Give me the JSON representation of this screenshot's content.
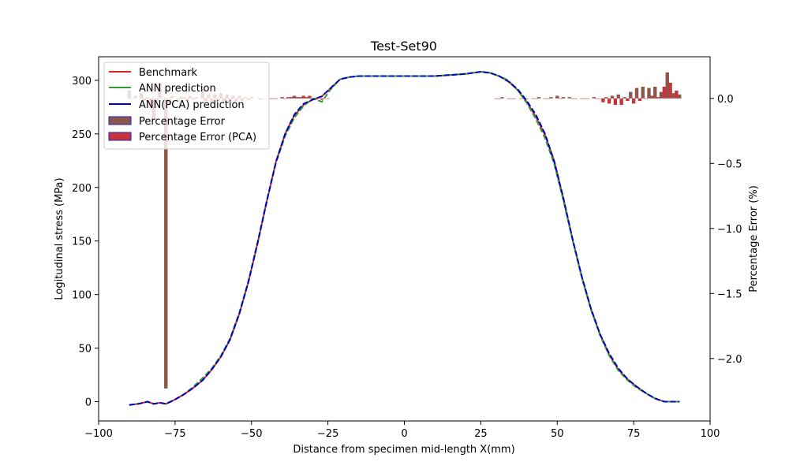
{
  "chart_data": {
    "type": "line",
    "title": "Test-Set90",
    "xlabel": "Distance from specimen mid-length X(mm)",
    "ylabel": "Logitudinal stress (MPa)",
    "y2label": "Percentage Error (%)",
    "xlim": [
      -100,
      100
    ],
    "ylim": [
      -18,
      322
    ],
    "y2lim": [
      -2.48,
      0.32
    ],
    "xticks": [
      -100,
      -75,
      -50,
      -25,
      0,
      25,
      50,
      75,
      100
    ],
    "yticks": [
      0,
      50,
      100,
      150,
      200,
      250,
      300
    ],
    "y2ticks": [
      -2.0,
      -1.5,
      -1.0,
      -0.5,
      0.0
    ],
    "y2ticklabels": [
      "−2.0",
      "−1.5",
      "−1.0",
      "−0.5",
      "0.0"
    ],
    "xticklabels": [
      "−100",
      "−75",
      "−50",
      "−25",
      "0",
      "25",
      "50",
      "75",
      "100"
    ],
    "grid": false,
    "legend_position": "top-left",
    "series": [
      {
        "name": "Benchmark",
        "color": "#d62728",
        "style": "solid",
        "x": [
          -90,
          -87,
          -84,
          -82,
          -80,
          -78,
          -75,
          -72,
          -69,
          -66,
          -63,
          -60,
          -57,
          -54,
          -51,
          -48,
          -45,
          -42,
          -39,
          -36,
          -33,
          -30,
          -27,
          -24,
          -21,
          -18,
          -15,
          -10,
          -5,
          0,
          5,
          10,
          15,
          20,
          25,
          28,
          31,
          34,
          37,
          40,
          43,
          46,
          49,
          52,
          55,
          58,
          61,
          64,
          67,
          70,
          73,
          76,
          79,
          82,
          85,
          88,
          90
        ],
        "values": [
          -3,
          -2,
          0,
          -2,
          -1,
          -2,
          2,
          7,
          13,
          20,
          30,
          42,
          58,
          82,
          112,
          148,
          187,
          224,
          250,
          267,
          277,
          282,
          285,
          293,
          301,
          303,
          304,
          304,
          304,
          304,
          304,
          304,
          305,
          306,
          308,
          307,
          304,
          299,
          291,
          280,
          266,
          249,
          225,
          190,
          152,
          117,
          87,
          63,
          44,
          30,
          21,
          14,
          8,
          3,
          0,
          0,
          0
        ]
      },
      {
        "name": "ANN prediction",
        "color": "#2ca02c",
        "style": "dashed",
        "x": [
          -90,
          -87,
          -84,
          -82,
          -80,
          -78,
          -75,
          -72,
          -69,
          -66,
          -63,
          -60,
          -57,
          -54,
          -51,
          -48,
          -45,
          -42,
          -39,
          -36,
          -33,
          -30,
          -27,
          -24,
          -21,
          -18,
          -15,
          -10,
          -5,
          0,
          5,
          10,
          15,
          20,
          25,
          28,
          31,
          34,
          37,
          40,
          43,
          46,
          49,
          52,
          55,
          58,
          61,
          64,
          67,
          70,
          73,
          76,
          79,
          82,
          85,
          88,
          90
        ],
        "values": [
          -3,
          -2,
          0,
          -2,
          -1,
          -2,
          2,
          7,
          14,
          22,
          31,
          43,
          59,
          83,
          113,
          149,
          188,
          223,
          248,
          265,
          276,
          283,
          280,
          292,
          301,
          303,
          304,
          304,
          304,
          304,
          304,
          304,
          305,
          306,
          308,
          307,
          304,
          300,
          291,
          279,
          264,
          246,
          222,
          188,
          151,
          116,
          86,
          62,
          43,
          29,
          20,
          13,
          8,
          3,
          0,
          0,
          0
        ]
      },
      {
        "name": "ANN(PCA) prediction",
        "color": "#0000cc",
        "style": "dashed",
        "x": [
          -90,
          -87,
          -84,
          -82,
          -80,
          -78,
          -75,
          -72,
          -69,
          -66,
          -63,
          -60,
          -57,
          -54,
          -51,
          -48,
          -45,
          -42,
          -39,
          -36,
          -33,
          -30,
          -27,
          -24,
          -21,
          -18,
          -15,
          -10,
          -5,
          0,
          5,
          10,
          15,
          20,
          25,
          28,
          31,
          34,
          37,
          40,
          43,
          46,
          49,
          52,
          55,
          58,
          61,
          64,
          67,
          70,
          73,
          76,
          79,
          82,
          85,
          88,
          90
        ],
        "values": [
          -3,
          -2,
          0,
          -2,
          -1,
          -2,
          2,
          7,
          13,
          20,
          30,
          42,
          58,
          82,
          112,
          148,
          187,
          224,
          250,
          268,
          278,
          282,
          285,
          293,
          301,
          303,
          304,
          304,
          304,
          304,
          304,
          304,
          305,
          306,
          308,
          307,
          304,
          299,
          292,
          281,
          268,
          250,
          224,
          190,
          152,
          117,
          87,
          63,
          45,
          31,
          21,
          14,
          8,
          3,
          0,
          0,
          0
        ]
      }
    ],
    "bar_series": [
      {
        "name": "Percentage Error",
        "color": "#8c564b",
        "edgecolor": "#1f1fcc",
        "x": [
          -90,
          -88,
          -86,
          -84,
          -82,
          -80,
          -78,
          -76,
          -74,
          -72,
          -70,
          -68,
          -66,
          -64,
          -62,
          -60,
          -58,
          -56,
          -54,
          -52,
          -50,
          -48,
          -46,
          -44,
          -42,
          -40,
          -38,
          -36,
          -34,
          -32,
          30,
          32,
          34,
          36,
          38,
          40,
          42,
          44,
          46,
          48,
          50,
          52,
          54,
          56,
          58,
          60,
          62,
          64,
          66,
          68,
          70,
          72,
          74,
          76,
          78,
          80,
          82,
          84,
          86,
          88,
          90
        ],
        "values": [
          0.06,
          0.02,
          0.04,
          0.01,
          -0.16,
          0.12,
          -2.23,
          0.02,
          -0.01,
          0.01,
          0.02,
          0.01,
          0.07,
          0.03,
          0.03,
          0.04,
          0.03,
          0.02,
          0.02,
          0.01,
          0.01,
          0.0,
          0.0,
          0.0,
          0.0,
          0.01,
          0.01,
          0.02,
          0.01,
          0.01,
          0.0,
          0.01,
          0.0,
          0.0,
          0.0,
          0.0,
          0.0,
          0.01,
          0.0,
          0.01,
          0.02,
          0.01,
          0.01,
          0.0,
          0.0,
          0.0,
          0.01,
          0.0,
          0.01,
          0.02,
          0.03,
          0.01,
          0.05,
          0.08,
          0.09,
          0.08,
          0.09,
          0.05,
          0.2,
          0.04,
          0.03
        ]
      },
      {
        "name": "Percentage Error (PCA)",
        "color": "#c8343c",
        "edgecolor": "#1f1fcc",
        "x": [
          -89,
          -85,
          -83,
          -81,
          -79,
          -77,
          -73,
          -71,
          -69,
          -65,
          -63,
          -61,
          -59,
          -57,
          -55,
          -53,
          -51,
          -47,
          -45,
          -43,
          -39,
          -37,
          -35,
          -33,
          -31,
          -29,
          -27,
          -25,
          31,
          35,
          39,
          43,
          47,
          51,
          55,
          59,
          63,
          65,
          67,
          69,
          71,
          73,
          75,
          77,
          79,
          81,
          83,
          85,
          87,
          89
        ],
        "values": [
          0.0,
          -0.02,
          -0.07,
          -0.03,
          0.0,
          -0.05,
          0.01,
          -0.02,
          -0.01,
          -0.02,
          -0.03,
          -0.02,
          -0.03,
          -0.03,
          -0.02,
          -0.02,
          -0.01,
          -0.01,
          0.0,
          0.0,
          0.0,
          0.01,
          0.01,
          0.02,
          0.02,
          -0.01,
          -0.01,
          0.0,
          0.0,
          0.0,
          0.0,
          0.0,
          0.0,
          0.0,
          0.0,
          0.0,
          0.0,
          -0.03,
          -0.04,
          -0.05,
          -0.05,
          -0.02,
          -0.04,
          -0.02,
          0.0,
          0.02,
          0.01,
          0.09,
          0.12,
          0.06
        ]
      }
    ]
  }
}
